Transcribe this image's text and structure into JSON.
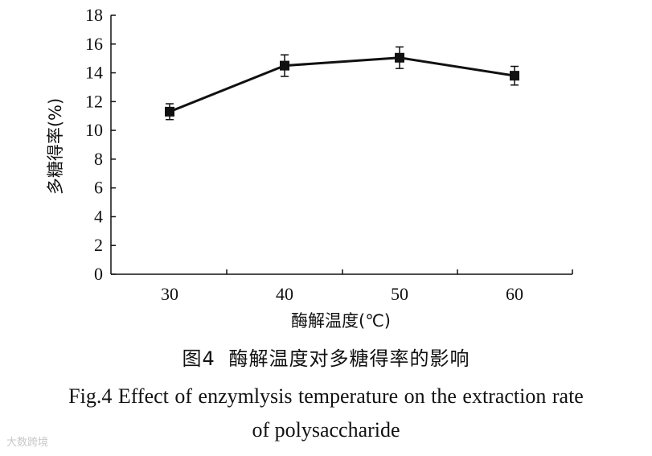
{
  "chart_data": {
    "type": "line",
    "x": [
      30,
      40,
      50,
      60
    ],
    "series": [
      {
        "values": [
          11.3,
          14.5,
          15.05,
          13.8
        ],
        "error": [
          0.55,
          0.75,
          0.75,
          0.65
        ],
        "color": "#111111",
        "marker": "square"
      }
    ],
    "xlabel": "酶解温度(℃)",
    "ylabel": "多糖得率(%)",
    "xticks": [
      "30",
      "40",
      "50",
      "60"
    ],
    "yticks": [
      "0",
      "2",
      "4",
      "6",
      "8",
      "10",
      "12",
      "14",
      "16",
      "18"
    ],
    "ylim": [
      0,
      18
    ],
    "grid": false
  },
  "caption": {
    "cn": "图4 酶解温度对多糖得率的影响",
    "en_line1": "Fig.4  Effect of enzymlysis temperature on the extraction rate",
    "en_line2": "of polysaccharide"
  },
  "watermark": "大数跨境"
}
